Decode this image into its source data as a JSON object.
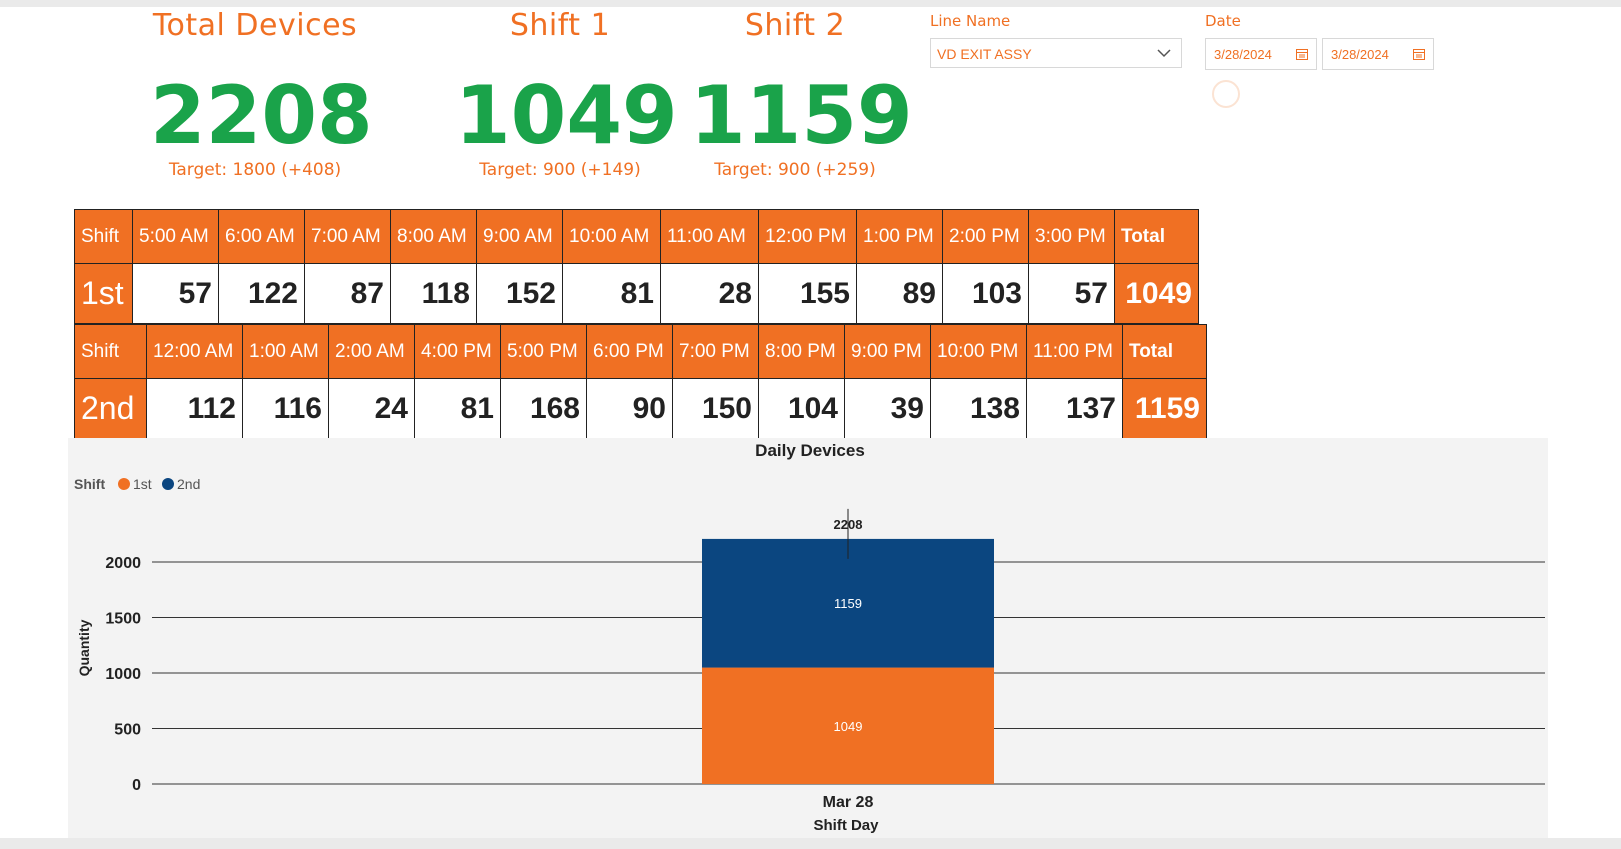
{
  "kpis": {
    "total": {
      "title": "Total Devices",
      "value": "2208",
      "target": "Target: 1800 (+408)"
    },
    "shift1": {
      "title": "Shift 1",
      "value": "1049",
      "target": "Target: 900 (+149)"
    },
    "shift2": {
      "title": "Shift 2",
      "value": "1159",
      "target": "Target: 900 (+259)"
    }
  },
  "slicers": {
    "line_label": "Line Name",
    "line_value": "VD EXIT ASSY",
    "date_label": "Date",
    "date_start": "3/28/2024",
    "date_end": "3/28/2024"
  },
  "table1": {
    "header_label": "Shift",
    "hours": [
      "5:00 AM",
      "6:00 AM",
      "7:00 AM",
      "8:00 AM",
      "9:00 AM",
      "10:00 AM",
      "11:00 AM",
      "12:00 PM",
      "1:00 PM",
      "2:00 PM",
      "3:00 PM"
    ],
    "total_label": "Total",
    "row_label": "1st",
    "values": [
      "57",
      "122",
      "87",
      "118",
      "152",
      "81",
      "28",
      "155",
      "89",
      "103",
      "57"
    ],
    "total": "1049"
  },
  "table2": {
    "header_label": "Shift",
    "hours": [
      "12:00 AM",
      "1:00 AM",
      "2:00 AM",
      "4:00 PM",
      "5:00 PM",
      "6:00 PM",
      "7:00 PM",
      "8:00 PM",
      "9:00 PM",
      "10:00 PM",
      "11:00 PM"
    ],
    "total_label": "Total",
    "row_label": "2nd",
    "values": [
      "112",
      "116",
      "24",
      "81",
      "168",
      "90",
      "150",
      "104",
      "39",
      "138",
      "137"
    ],
    "total": "1159"
  },
  "colors": {
    "accent": "#f07023",
    "kpi_green": "#1aa34a",
    "series_1st": "#f07023",
    "series_2nd": "#0b4680"
  },
  "chart_data": {
    "type": "bar",
    "stacked": true,
    "title": "Daily Devices",
    "legend_title": "Shift",
    "legend_position": "top-left",
    "xlabel": "Shift Day",
    "ylabel": "Quantity",
    "categories": [
      "Mar 28"
    ],
    "series": [
      {
        "name": "1st",
        "values": [
          1049
        ],
        "color": "#f07023"
      },
      {
        "name": "2nd",
        "values": [
          1159
        ],
        "color": "#0b4680"
      }
    ],
    "total_labels": [
      "2208"
    ],
    "yticks": [
      "0",
      "500",
      "1000",
      "1500",
      "2000"
    ],
    "ylim": [
      0,
      2208
    ],
    "grid": true
  }
}
